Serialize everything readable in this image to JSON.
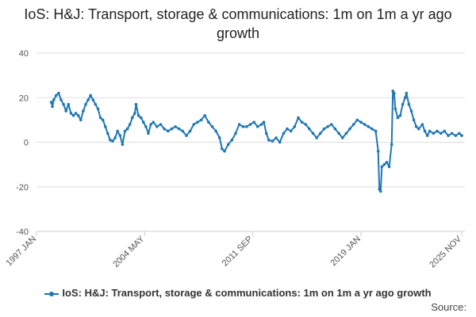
{
  "chart_data": {
    "type": "line",
    "title": "IoS: H&J: Transport, storage & communications: 1m on 1m a yr ago growth",
    "x_tick_labels": [
      "1997 JAN",
      "2004 MAY",
      "2011 SEP",
      "2019 JAN",
      "2025 NOV"
    ],
    "y_tick_labels": [
      "40",
      "20",
      "0",
      "-20",
      "-40"
    ],
    "ylim": [
      -40,
      40
    ],
    "grid": true,
    "legend_position": "bottom",
    "series": [
      {
        "name": "IoS: H&J: Transport, storage & communications: 1m on 1m a yr ago growth",
        "color": "#1f77b4",
        "points": [
          [
            "1998-01",
            18
          ],
          [
            "1998-02",
            16
          ],
          [
            "1998-03",
            19
          ],
          [
            "1998-05",
            21
          ],
          [
            "1998-07",
            22
          ],
          [
            "1998-09",
            19
          ],
          [
            "1998-11",
            17
          ],
          [
            "1999-01",
            14
          ],
          [
            "1999-03",
            17
          ],
          [
            "1999-05",
            13
          ],
          [
            "1999-07",
            12
          ],
          [
            "1999-09",
            13
          ],
          [
            "1999-11",
            12
          ],
          [
            "2000-01",
            10
          ],
          [
            "2000-03",
            14
          ],
          [
            "2000-05",
            17
          ],
          [
            "2000-07",
            19
          ],
          [
            "2000-09",
            21
          ],
          [
            "2000-11",
            19
          ],
          [
            "2001-01",
            17
          ],
          [
            "2001-03",
            15
          ],
          [
            "2001-05",
            11
          ],
          [
            "2001-07",
            10
          ],
          [
            "2001-09",
            7
          ],
          [
            "2001-11",
            4
          ],
          [
            "2002-01",
            1
          ],
          [
            "2002-03",
            0.5
          ],
          [
            "2002-05",
            2
          ],
          [
            "2002-07",
            5
          ],
          [
            "2002-09",
            3
          ],
          [
            "2002-11",
            -1
          ],
          [
            "2003-01",
            5
          ],
          [
            "2003-03",
            6
          ],
          [
            "2003-05",
            8
          ],
          [
            "2003-07",
            11
          ],
          [
            "2003-09",
            13
          ],
          [
            "2003-10",
            17
          ],
          [
            "2003-12",
            12
          ],
          [
            "2004-02",
            11
          ],
          [
            "2004-04",
            9
          ],
          [
            "2004-06",
            7
          ],
          [
            "2004-08",
            4
          ],
          [
            "2004-10",
            8
          ],
          [
            "2004-12",
            9
          ],
          [
            "2005-03",
            7
          ],
          [
            "2005-06",
            8
          ],
          [
            "2005-09",
            6
          ],
          [
            "2005-12",
            5
          ],
          [
            "2006-03",
            6
          ],
          [
            "2006-06",
            7
          ],
          [
            "2006-09",
            6
          ],
          [
            "2006-12",
            5
          ],
          [
            "2007-03",
            3
          ],
          [
            "2007-06",
            5
          ],
          [
            "2007-09",
            8
          ],
          [
            "2007-12",
            9
          ],
          [
            "2008-03",
            10
          ],
          [
            "2008-06",
            12
          ],
          [
            "2008-09",
            9
          ],
          [
            "2008-12",
            7
          ],
          [
            "2009-03",
            5
          ],
          [
            "2009-06",
            2
          ],
          [
            "2009-08",
            -3
          ],
          [
            "2009-10",
            -4
          ],
          [
            "2010-01",
            -1
          ],
          [
            "2010-04",
            1
          ],
          [
            "2010-07",
            4
          ],
          [
            "2010-10",
            8
          ],
          [
            "2011-01",
            7
          ],
          [
            "2011-04",
            7
          ],
          [
            "2011-07",
            8
          ],
          [
            "2011-10",
            9
          ],
          [
            "2012-01",
            7
          ],
          [
            "2012-04",
            8
          ],
          [
            "2012-06",
            9
          ],
          [
            "2012-08",
            4
          ],
          [
            "2012-10",
            1
          ],
          [
            "2013-01",
            0.5
          ],
          [
            "2013-04",
            2
          ],
          [
            "2013-07",
            0
          ],
          [
            "2013-10",
            4
          ],
          [
            "2014-01",
            6
          ],
          [
            "2014-04",
            5
          ],
          [
            "2014-07",
            7
          ],
          [
            "2014-10",
            11
          ],
          [
            "2015-01",
            9
          ],
          [
            "2015-04",
            8
          ],
          [
            "2015-07",
            6
          ],
          [
            "2015-10",
            4
          ],
          [
            "2016-01",
            2
          ],
          [
            "2016-04",
            4
          ],
          [
            "2016-07",
            6
          ],
          [
            "2016-10",
            7
          ],
          [
            "2017-01",
            8
          ],
          [
            "2017-04",
            6
          ],
          [
            "2017-07",
            4
          ],
          [
            "2017-10",
            2
          ],
          [
            "2018-01",
            4
          ],
          [
            "2018-04",
            6
          ],
          [
            "2018-07",
            8
          ],
          [
            "2018-10",
            10
          ],
          [
            "2019-01",
            9
          ],
          [
            "2019-04",
            8
          ],
          [
            "2019-07",
            7
          ],
          [
            "2019-10",
            6
          ],
          [
            "2020-01",
            5
          ],
          [
            "2020-03",
            -4
          ],
          [
            "2020-04",
            -21
          ],
          [
            "2020-05",
            -22
          ],
          [
            "2020-06",
            -11
          ],
          [
            "2020-08",
            -10
          ],
          [
            "2020-10",
            -9
          ],
          [
            "2020-12",
            -11
          ],
          [
            "2021-02",
            -1
          ],
          [
            "2021-03",
            23
          ],
          [
            "2021-04",
            22
          ],
          [
            "2021-05",
            15
          ],
          [
            "2021-07",
            11
          ],
          [
            "2021-09",
            12
          ],
          [
            "2021-11",
            17
          ],
          [
            "2022-01",
            20
          ],
          [
            "2022-02",
            22
          ],
          [
            "2022-04",
            17
          ],
          [
            "2022-06",
            14
          ],
          [
            "2022-08",
            10
          ],
          [
            "2022-10",
            7
          ],
          [
            "2022-12",
            6
          ],
          [
            "2023-03",
            8
          ],
          [
            "2023-05",
            5
          ],
          [
            "2023-07",
            3
          ],
          [
            "2023-09",
            5
          ],
          [
            "2023-12",
            4
          ],
          [
            "2024-03",
            5
          ],
          [
            "2024-06",
            4
          ],
          [
            "2024-09",
            5
          ],
          [
            "2024-12",
            3
          ],
          [
            "2025-03",
            4
          ],
          [
            "2025-06",
            3
          ],
          [
            "2025-09",
            4
          ],
          [
            "2025-11",
            3
          ]
        ]
      }
    ]
  },
  "source_text": "Source:"
}
